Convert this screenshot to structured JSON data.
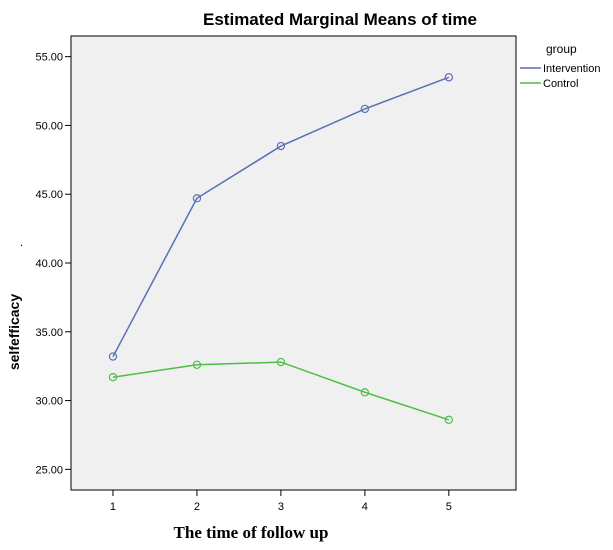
{
  "chart_data": {
    "type": "line",
    "title": "Estimated Marginal Means of time",
    "xlabel": "The time of follow up",
    "ylabel": "selfefficacy",
    "stray_mark": ".",
    "x": [
      1,
      2,
      3,
      4,
      5
    ],
    "x_tick_labels": [
      "1",
      "2",
      "3",
      "4",
      "5"
    ],
    "xlim": [
      0.5,
      5.8
    ],
    "ylim": [
      23.5,
      56.5
    ],
    "y_ticks": [
      25,
      30,
      35,
      40,
      45,
      50,
      55
    ],
    "y_tick_labels": [
      "25.00",
      "30.00",
      "35.00",
      "40.00",
      "45.00",
      "50.00",
      "55.00"
    ],
    "legend": {
      "title": "group",
      "position": "right"
    },
    "series": [
      {
        "name": "Intervention",
        "color": "#5a6fb5",
        "values": [
          33.2,
          44.7,
          48.5,
          51.2,
          53.5
        ]
      },
      {
        "name": "Control",
        "color": "#4dbd45",
        "values": [
          31.7,
          32.6,
          32.8,
          30.6,
          28.6
        ]
      }
    ],
    "plot_background": "#f0f0f0",
    "grid": false
  }
}
